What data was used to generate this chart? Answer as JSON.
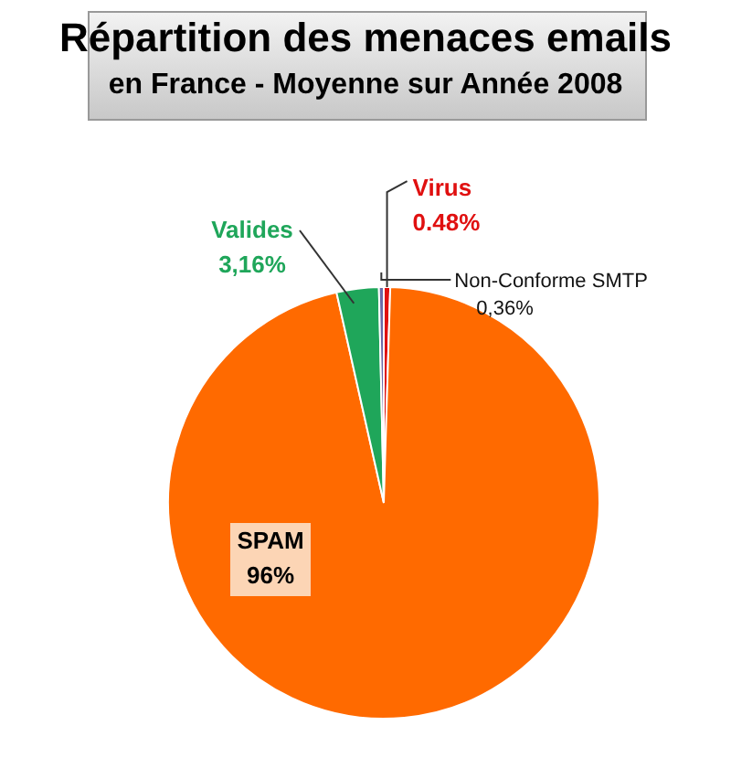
{
  "chart_data": {
    "type": "pie",
    "title": "Répartition des menaces emails",
    "subtitle": "en France - Moyenne sur Année 2008",
    "categories": [
      "Virus",
      "SPAM",
      "Valides",
      "Non-Conforme SMTP"
    ],
    "values": [
      0.48,
      96,
      3.16,
      0.36
    ],
    "colors": [
      "#e01010",
      "#ff6a00",
      "#1fa65a",
      "#6a6aa8"
    ],
    "value_labels": [
      "0.48%",
      "96%",
      "3,16%",
      "0,36%"
    ]
  }
}
